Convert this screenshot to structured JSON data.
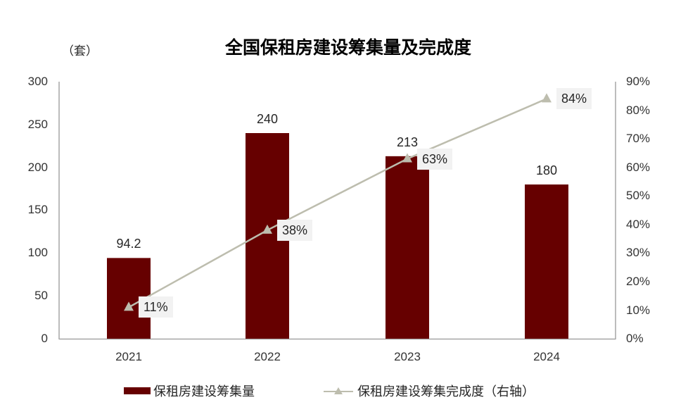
{
  "chart_data": {
    "type": "bar+line",
    "title": "全国保租房建设筹集量及完成度",
    "unit_label": "（套）",
    "categories": [
      "2021",
      "2022",
      "2023",
      "2024"
    ],
    "series": [
      {
        "name": "保租房建设筹集量",
        "type": "bar",
        "axis": "left",
        "values": [
          94.2,
          240,
          213,
          180
        ],
        "labels": [
          "94.2",
          "240",
          "213",
          "180"
        ],
        "color": "#660000"
      },
      {
        "name": "保租房建设筹集完成度（右轴）",
        "type": "line",
        "axis": "right",
        "marker": "triangle",
        "values": [
          0.11,
          0.38,
          0.63,
          0.84
        ],
        "labels": [
          "11%",
          "38%",
          "63%",
          "84%"
        ],
        "color": "#BDBDAE"
      }
    ],
    "left_axis": {
      "min": 0,
      "max": 300,
      "ticks": [
        "0",
        "50",
        "100",
        "150",
        "200",
        "250",
        "300"
      ]
    },
    "right_axis": {
      "min": 0,
      "max": 0.9,
      "ticks": [
        "0%",
        "10%",
        "20%",
        "30%",
        "40%",
        "50%",
        "60%",
        "70%",
        "80%",
        "90%"
      ]
    },
    "grid": false,
    "legend_position": "bottom"
  },
  "colors": {
    "bar": "#660000",
    "line": "#BDBDAE",
    "axis": "#A6A6A6",
    "label_box": "#F2F2F2"
  }
}
